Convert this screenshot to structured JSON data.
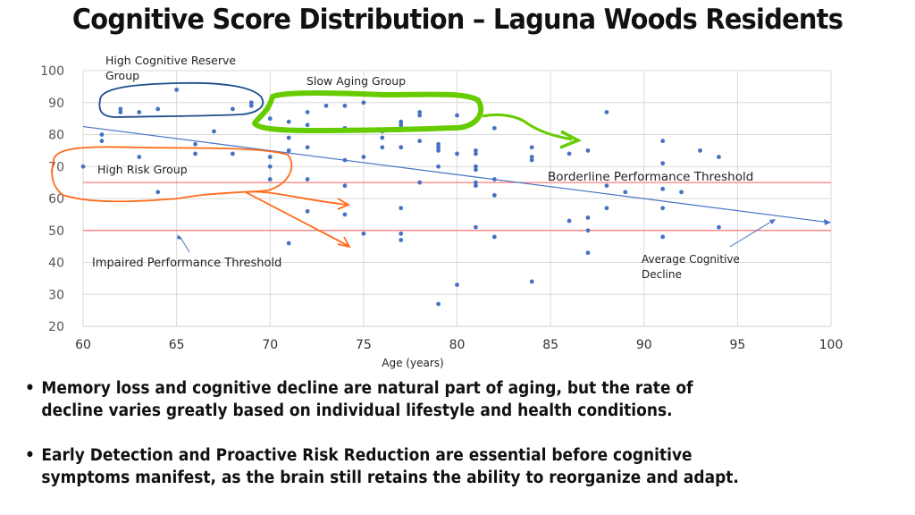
{
  "title": "Cognitive Score Distribution – Laguna Woods Residents",
  "chart_data": {
    "type": "scatter",
    "title": "Cognitive Score Distribution – Laguna Woods Residents",
    "xlabel": "Age (years)",
    "ylabel": "",
    "xlim": [
      60,
      100
    ],
    "ylim": [
      20,
      100
    ],
    "x_ticks": [
      60,
      65,
      70,
      75,
      80,
      85,
      90,
      95,
      100
    ],
    "y_ticks": [
      20,
      30,
      40,
      50,
      60,
      70,
      80,
      90,
      100
    ],
    "grid": true,
    "point_color": "#4472c4",
    "points": [
      [
        60,
        70
      ],
      [
        61,
        80
      ],
      [
        61,
        78
      ],
      [
        62,
        88
      ],
      [
        62,
        87
      ],
      [
        63,
        87
      ],
      [
        63,
        73
      ],
      [
        64,
        88
      ],
      [
        64,
        62
      ],
      [
        65,
        94
      ],
      [
        66,
        77
      ],
      [
        66,
        74
      ],
      [
        67,
        81
      ],
      [
        68,
        88
      ],
      [
        68,
        74
      ],
      [
        69,
        90
      ],
      [
        69,
        89
      ],
      [
        70,
        85
      ],
      [
        70,
        82
      ],
      [
        70,
        73
      ],
      [
        70,
        70
      ],
      [
        70,
        66
      ],
      [
        71,
        84
      ],
      [
        71,
        79
      ],
      [
        71,
        75
      ],
      [
        71,
        46
      ],
      [
        72,
        87
      ],
      [
        72,
        83
      ],
      [
        72,
        76
      ],
      [
        72,
        66
      ],
      [
        72,
        56
      ],
      [
        73,
        89
      ],
      [
        74,
        89
      ],
      [
        74,
        82
      ],
      [
        74,
        72
      ],
      [
        74,
        64
      ],
      [
        74,
        55
      ],
      [
        75,
        90
      ],
      [
        75,
        73
      ],
      [
        75,
        49
      ],
      [
        76,
        81
      ],
      [
        76,
        79
      ],
      [
        76,
        76
      ],
      [
        77,
        84
      ],
      [
        77,
        83
      ],
      [
        77,
        82
      ],
      [
        77,
        76
      ],
      [
        77,
        57
      ],
      [
        77,
        49
      ],
      [
        77,
        47
      ],
      [
        78,
        87
      ],
      [
        78,
        86
      ],
      [
        78,
        78
      ],
      [
        78,
        65
      ],
      [
        79,
        77
      ],
      [
        79,
        76
      ],
      [
        79,
        75
      ],
      [
        79,
        70
      ],
      [
        79,
        27
      ],
      [
        80,
        86
      ],
      [
        80,
        74
      ],
      [
        80,
        33
      ],
      [
        81,
        75
      ],
      [
        81,
        74
      ],
      [
        81,
        70
      ],
      [
        81,
        69
      ],
      [
        81,
        65
      ],
      [
        81,
        64
      ],
      [
        81,
        51
      ],
      [
        82,
        82
      ],
      [
        82,
        66
      ],
      [
        82,
        61
      ],
      [
        82,
        48
      ],
      [
        84,
        76
      ],
      [
        84,
        73
      ],
      [
        84,
        72
      ],
      [
        84,
        34
      ],
      [
        86,
        74
      ],
      [
        86,
        53
      ],
      [
        87,
        75
      ],
      [
        87,
        54
      ],
      [
        87,
        50
      ],
      [
        87,
        43
      ],
      [
        88,
        87
      ],
      [
        88,
        64
      ],
      [
        88,
        57
      ],
      [
        89,
        62
      ],
      [
        91,
        78
      ],
      [
        91,
        71
      ],
      [
        91,
        63
      ],
      [
        91,
        57
      ],
      [
        91,
        48
      ],
      [
        92,
        62
      ],
      [
        93,
        75
      ],
      [
        94,
        73
      ],
      [
        94,
        51
      ]
    ],
    "reference_lines": [
      {
        "name": "Borderline Performance Threshold",
        "y": 65,
        "color": "#ff5b5b"
      },
      {
        "name": "Impaired Performance Threshold",
        "y": 50,
        "color": "#ff5b5b"
      }
    ],
    "trend_line": {
      "name": "Average Cognitive Decline",
      "x": [
        60,
        100
      ],
      "y": [
        82.5,
        52.5
      ],
      "color": "#4472c4"
    },
    "annotations": [
      {
        "text_lines": [
          "High Cognitive Reserve",
          "Group"
        ],
        "color": "#222222"
      },
      {
        "text_lines": [
          "Slow Aging Group"
        ],
        "color": "#222222"
      },
      {
        "text_lines": [
          "High Risk Group"
        ],
        "color": "#222222"
      },
      {
        "text_lines": [
          "Borderline Performance Threshold"
        ],
        "color": "#222222"
      },
      {
        "text_lines": [
          "Impaired Performance Threshold"
        ],
        "color": "#222222"
      },
      {
        "text_lines": [
          "Average Cognitive",
          "Decline"
        ],
        "color": "#222222"
      }
    ],
    "highlight_colors": {
      "high_reserve": "#1f4e8c",
      "slow_aging": "#66cc00",
      "high_risk": "#ff6a1a"
    }
  },
  "bullets": [
    {
      "lines": [
        "Memory loss and cognitive decline are natural part of aging, but the rate of",
        "decline varies greatly based on individual lifestyle and health conditions."
      ]
    },
    {
      "lines": [
        "Early Detection and Proactive Risk Reduction are essential before cognitive",
        "symptoms manifest, as the brain still retains the ability to reorganize and adapt."
      ]
    }
  ],
  "bullet_glyph": "•"
}
